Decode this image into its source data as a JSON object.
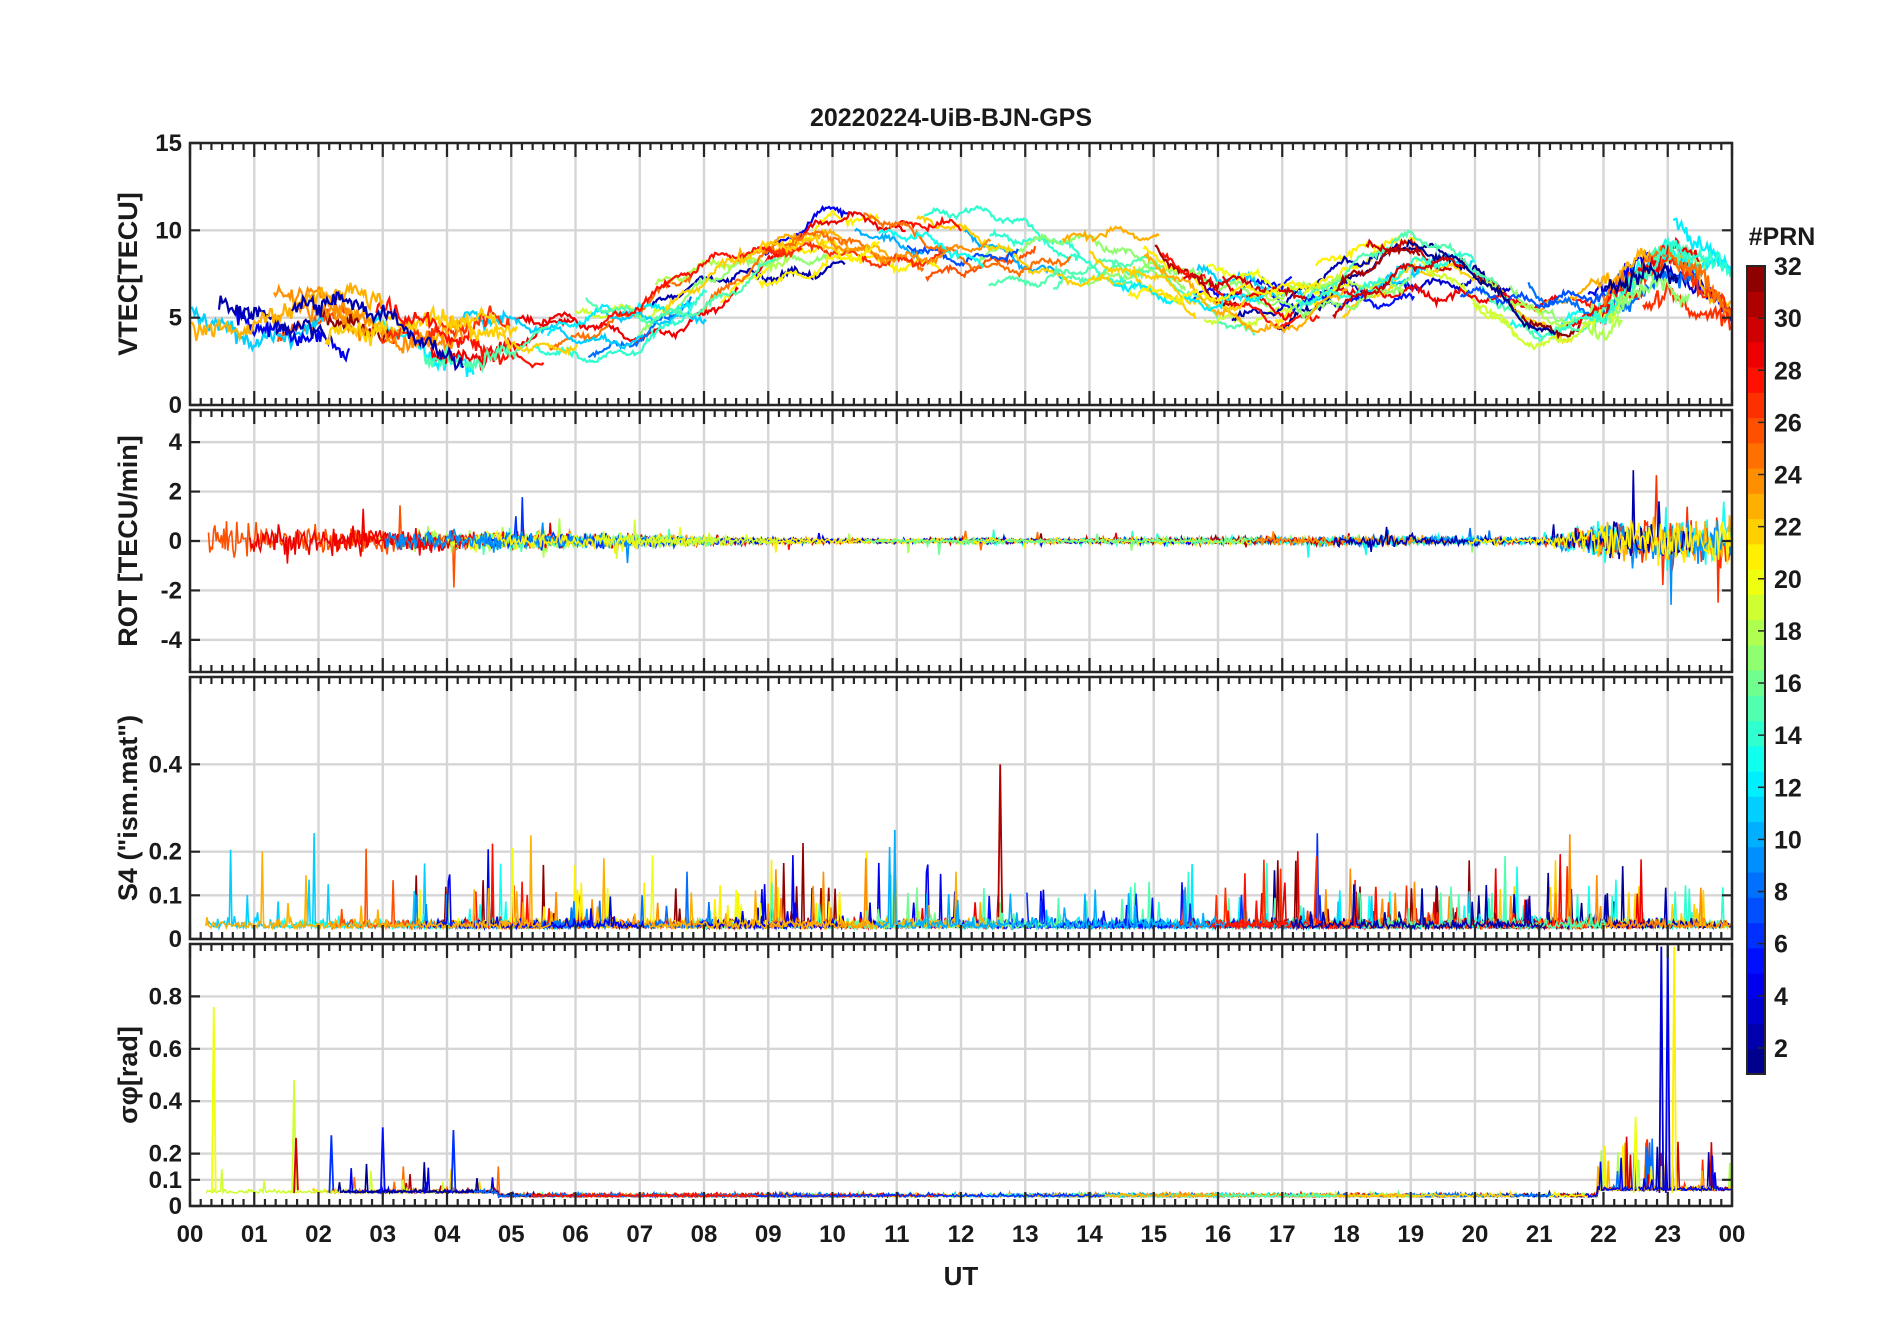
{
  "figure": {
    "title": "20220224-UiB-BJN-GPS",
    "x_label": "UT",
    "x_tick_labels": [
      "00",
      "01",
      "02",
      "03",
      "04",
      "05",
      "06",
      "07",
      "08",
      "09",
      "10",
      "11",
      "12",
      "13",
      "14",
      "15",
      "16",
      "17",
      "18",
      "19",
      "20",
      "21",
      "22",
      "23",
      "00"
    ]
  },
  "colorbar": {
    "title": "#PRN",
    "range": [
      1,
      32
    ],
    "tick_labels": [
      "2",
      "4",
      "6",
      "8",
      "10",
      "12",
      "14",
      "16",
      "18",
      "20",
      "22",
      "24",
      "26",
      "28",
      "30",
      "32"
    ],
    "colormap": "jet",
    "levels": 32
  },
  "chart_data": [
    {
      "type": "line",
      "panel": "vtec",
      "ylabel": "VTEC[TECU]",
      "xlim": [
        0,
        24
      ],
      "ylim": [
        0,
        15
      ],
      "y_ticks": [
        0,
        5,
        10,
        15
      ],
      "y_tick_labels": [
        "0",
        "5",
        "10",
        "15"
      ],
      "grid": true,
      "series_color_by": "PRN",
      "envelope": {
        "x": [
          0,
          1,
          2,
          3,
          4,
          5,
          6,
          7,
          8,
          9,
          10,
          11,
          12,
          13,
          14,
          15,
          16,
          17,
          18,
          19,
          20,
          21,
          22,
          23,
          24
        ],
        "y": [
          5.5,
          5,
          5.5,
          5,
          4,
          4,
          4.5,
          5,
          6.5,
          8,
          9.5,
          9.5,
          9,
          8.5,
          8,
          7.5,
          6,
          5.5,
          7,
          8,
          7,
          5,
          5.5,
          8,
          6
        ]
      }
    },
    {
      "type": "line",
      "panel": "rot",
      "ylabel": "ROT [TECU/min]",
      "xlim": [
        0,
        24
      ],
      "ylim": [
        -5.3,
        5.3
      ],
      "y_ticks": [
        -4,
        -2,
        0,
        2,
        4
      ],
      "y_tick_labels": [
        "-4",
        "-2",
        "0",
        "2",
        "4"
      ],
      "grid": true,
      "series_color_by": "PRN",
      "spread": {
        "x": [
          0,
          1,
          2,
          3,
          4,
          5,
          6,
          7,
          8,
          9,
          10,
          11,
          12,
          13,
          14,
          15,
          16,
          17,
          18,
          19,
          20,
          21,
          22,
          23,
          24
        ],
        "y": [
          1.3,
          1.2,
          0.9,
          0.8,
          0.7,
          0.6,
          0.5,
          0.4,
          0.3,
          0.2,
          0.15,
          0.15,
          0.2,
          0.15,
          0.15,
          0.2,
          0.25,
          0.3,
          0.35,
          0.35,
          0.25,
          0.2,
          1.3,
          1.6,
          1.4
        ]
      }
    },
    {
      "type": "line",
      "panel": "s4",
      "ylabel": "S4 (\"ism.mat\")",
      "xlim": [
        0,
        24
      ],
      "ylim": [
        0,
        0.6
      ],
      "y_ticks": [
        0,
        0.1,
        0.2,
        0.4
      ],
      "y_tick_labels": [
        "0",
        "0.1",
        "0.2",
        "0.4"
      ],
      "grid": true,
      "series_color_by": "PRN"
    },
    {
      "type": "line",
      "panel": "sigma_phi",
      "ylabel": "σφ[rad]",
      "xlim": [
        0,
        24
      ],
      "ylim": [
        0,
        1.0
      ],
      "y_ticks": [
        0,
        0.1,
        0.2,
        0.4,
        0.6,
        0.8
      ],
      "y_tick_labels": [
        "0",
        "0.1",
        "0.2",
        "0.4",
        "0.6",
        "0.8"
      ],
      "grid": true,
      "series_color_by": "PRN"
    }
  ]
}
